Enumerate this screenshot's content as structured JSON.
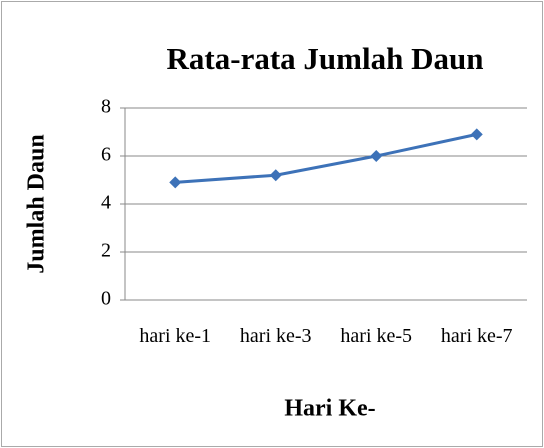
{
  "chart_data": {
    "type": "line",
    "title": "Rata-rata Jumlah Daun",
    "x_label": "Hari Ke-",
    "y_label": "Jumlah Daun",
    "categories": [
      "hari ke-1",
      "hari ke-3",
      "hari ke-5",
      "hari ke-7"
    ],
    "values": [
      4.9,
      5.2,
      6.0,
      6.9
    ],
    "color": "#3d72b8",
    "ylim": [
      0,
      8
    ],
    "yticks": [
      0,
      2,
      4,
      6,
      8
    ],
    "grid": true
  }
}
